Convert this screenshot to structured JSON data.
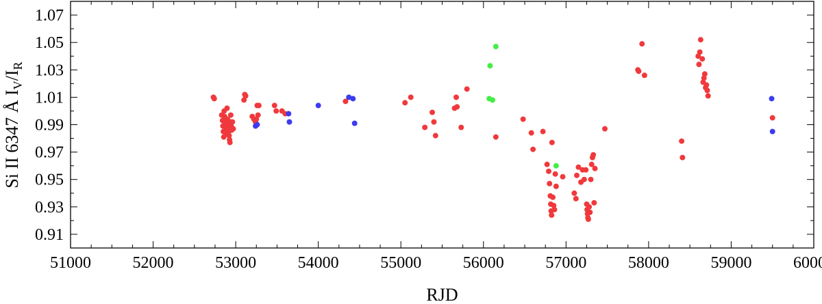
{
  "chart_data": {
    "type": "scatter",
    "xlabel": "RJD",
    "ylabel": {
      "prefix": "Si II 6347 Å  I",
      "sub1": "V",
      "mid": "/I",
      "sub2": "R"
    },
    "xlim": [
      51000,
      60000
    ],
    "ylim": [
      0.9,
      1.08
    ],
    "x_ticks": [
      51000,
      52000,
      53000,
      54000,
      55000,
      56000,
      57000,
      58000,
      59000,
      60000
    ],
    "x_tick_labels": [
      "51000",
      "52000",
      "53000",
      "54000",
      "55000",
      "56000",
      "57000",
      "58000",
      "59000",
      "60000"
    ],
    "y_ticks": [
      0.91,
      0.93,
      0.95,
      0.97,
      0.99,
      1.01,
      1.03,
      1.05,
      1.07
    ],
    "y_tick_labels": [
      "0.91",
      "0.93",
      "0.95",
      "0.97",
      "0.99",
      "1.01",
      "1.03",
      "1.05",
      "1.07"
    ],
    "grid": false,
    "series": [
      {
        "color": "#f0393c",
        "points": [
          [
            52730,
            1.01
          ],
          [
            52740,
            1.009
          ],
          [
            52830,
            0.997
          ],
          [
            52840,
            0.993
          ],
          [
            52845,
            0.989
          ],
          [
            52850,
            0.985
          ],
          [
            52855,
            0.981
          ],
          [
            52860,
            1.0
          ],
          [
            52865,
            0.996
          ],
          [
            52870,
            0.992
          ],
          [
            52875,
            0.99
          ],
          [
            52880,
            0.988
          ],
          [
            52885,
            0.985
          ],
          [
            52890,
            0.983
          ],
          [
            52895,
            1.002
          ],
          [
            52900,
            0.994
          ],
          [
            52905,
            0.991
          ],
          [
            52910,
            0.987
          ],
          [
            52915,
            0.985
          ],
          [
            52920,
            0.982
          ],
          [
            52925,
            0.979
          ],
          [
            52930,
            0.977
          ],
          [
            52935,
            0.992
          ],
          [
            52940,
            0.997
          ],
          [
            52945,
            0.989
          ],
          [
            52950,
            0.986
          ],
          [
            52960,
            0.992
          ],
          [
            52970,
            0.987
          ],
          [
            53100,
            1.008
          ],
          [
            53110,
            1.012
          ],
          [
            53120,
            1.011
          ],
          [
            53200,
            0.996
          ],
          [
            53220,
            0.994
          ],
          [
            53240,
            0.992
          ],
          [
            53250,
            0.994
          ],
          [
            53260,
            1.004
          ],
          [
            53270,
            0.997
          ],
          [
            53280,
            1.004
          ],
          [
            53470,
            1.004
          ],
          [
            53490,
            1.0
          ],
          [
            53560,
            1.0
          ],
          [
            53600,
            0.998
          ],
          [
            54330,
            1.007
          ],
          [
            55050,
            1.006
          ],
          [
            55120,
            1.01
          ],
          [
            55290,
            0.988
          ],
          [
            55380,
            0.999
          ],
          [
            55400,
            0.992
          ],
          [
            55420,
            0.982
          ],
          [
            55650,
            1.002
          ],
          [
            55670,
            1.01
          ],
          [
            55680,
            1.003
          ],
          [
            55730,
            0.988
          ],
          [
            55800,
            1.016
          ],
          [
            56150,
            0.981
          ],
          [
            56480,
            0.994
          ],
          [
            56580,
            0.984
          ],
          [
            56600,
            0.972
          ],
          [
            56720,
            0.985
          ],
          [
            56770,
            0.961
          ],
          [
            56790,
            0.956
          ],
          [
            56800,
            0.947
          ],
          [
            56810,
            0.938
          ],
          [
            56815,
            0.932
          ],
          [
            56820,
            0.927
          ],
          [
            56825,
            0.924
          ],
          [
            56830,
            0.977
          ],
          [
            56840,
            0.937
          ],
          [
            56850,
            0.931
          ],
          [
            56860,
            0.928
          ],
          [
            56870,
            0.954
          ],
          [
            56880,
            0.945
          ],
          [
            56960,
            0.952
          ],
          [
            57100,
            0.94
          ],
          [
            57120,
            0.936
          ],
          [
            57130,
            0.953
          ],
          [
            57150,
            0.959
          ],
          [
            57180,
            0.948
          ],
          [
            57200,
            0.957
          ],
          [
            57220,
            0.95
          ],
          [
            57240,
            0.957
          ],
          [
            57250,
            0.932
          ],
          [
            57255,
            0.928
          ],
          [
            57260,
            0.925
          ],
          [
            57265,
            0.922
          ],
          [
            57270,
            0.921
          ],
          [
            57280,
            0.93
          ],
          [
            57290,
            0.926
          ],
          [
            57300,
            0.95
          ],
          [
            57310,
            0.961
          ],
          [
            57320,
            0.966
          ],
          [
            57330,
            0.968
          ],
          [
            57340,
            0.933
          ],
          [
            57350,
            0.958
          ],
          [
            57470,
            0.987
          ],
          [
            57870,
            1.03
          ],
          [
            57880,
            1.029
          ],
          [
            57920,
            1.049
          ],
          [
            57950,
            1.026
          ],
          [
            58400,
            0.978
          ],
          [
            58410,
            0.966
          ],
          [
            58600,
            1.04
          ],
          [
            58610,
            1.034
          ],
          [
            58620,
            1.043
          ],
          [
            58630,
            1.052
          ],
          [
            58650,
            1.038
          ],
          [
            58660,
            1.021
          ],
          [
            58670,
            1.024
          ],
          [
            58680,
            1.027
          ],
          [
            58690,
            1.017
          ],
          [
            58700,
            1.019
          ],
          [
            58710,
            1.015
          ],
          [
            58720,
            1.011
          ],
          [
            59500,
            0.995
          ]
        ]
      },
      {
        "color": "#3c3cf0",
        "points": [
          [
            53240,
            0.989
          ],
          [
            53260,
            0.99
          ],
          [
            53640,
            0.998
          ],
          [
            53650,
            0.992
          ],
          [
            54000,
            1.004
          ],
          [
            54370,
            1.01
          ],
          [
            54420,
            1.009
          ],
          [
            54440,
            0.991
          ],
          [
            59490,
            1.009
          ],
          [
            59500,
            0.985
          ]
        ]
      },
      {
        "color": "#44ee44",
        "points": [
          [
            56070,
            1.009
          ],
          [
            56080,
            1.033
          ],
          [
            56110,
            1.008
          ],
          [
            56150,
            1.047
          ],
          [
            56880,
            0.96
          ]
        ]
      }
    ]
  }
}
